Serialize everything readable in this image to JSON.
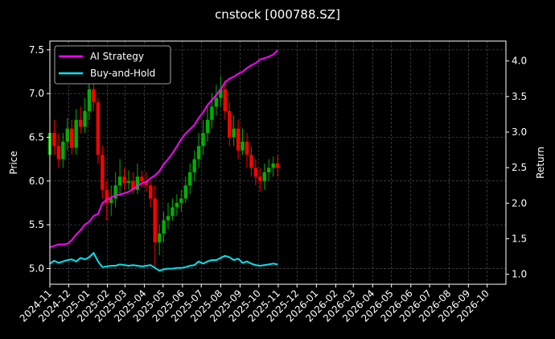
{
  "chart_data": {
    "type": "line",
    "title": "cnstock [000788.SZ]",
    "xlabel": "",
    "ylabel_left": "Price",
    "ylabel_right": "Return",
    "ylim_left": [
      4.82,
      7.6
    ],
    "ylim_right": [
      0.86,
      4.28
    ],
    "xlim": [
      "2024-11-01",
      "2026-10-31"
    ],
    "yticks_left": [
      5.0,
      5.5,
      6.0,
      6.5,
      7.0,
      7.5
    ],
    "yticks_right": [
      1.0,
      1.5,
      2.0,
      2.5,
      3.0,
      3.5,
      4.0
    ],
    "ytick_labels_left": [
      "5.0",
      "5.5",
      "6.0",
      "6.5",
      "7.0",
      "7.5"
    ],
    "ytick_labels_right": [
      "1.0",
      "1.5",
      "2.0",
      "2.5",
      "3.0",
      "3.5",
      "4.0"
    ],
    "xtick_labels": [
      "2024-11",
      "2024-12",
      "2025-01",
      "2025-02",
      "2025-03",
      "2025-04",
      "2025-05",
      "2025-06",
      "2025-07",
      "2025-08",
      "2025-09",
      "2025-10",
      "2025-11",
      "2025-12",
      "2026-01",
      "2026-02",
      "2026-03",
      "2026-04",
      "2026-05",
      "2026-06",
      "2026-07",
      "2026-08",
      "2026-09",
      "2026-10"
    ],
    "grid": true,
    "legend_position": "top-left",
    "series": [
      {
        "name": "AI Strategy",
        "axis": "right",
        "color": "#ff00ff",
        "x": [
          "2024-11-01",
          "2024-11-08",
          "2024-11-15",
          "2024-11-22",
          "2024-11-29",
          "2024-12-06",
          "2024-12-13",
          "2024-12-20",
          "2024-12-27",
          "2025-01-03",
          "2025-01-10",
          "2025-01-17",
          "2025-01-24",
          "2025-01-31",
          "2025-02-07",
          "2025-02-14",
          "2025-02-21",
          "2025-02-28",
          "2025-03-07",
          "2025-03-14",
          "2025-03-21",
          "2025-03-28",
          "2025-04-04",
          "2025-04-11",
          "2025-04-18",
          "2025-04-25",
          "2025-05-02",
          "2025-05-09",
          "2025-05-16",
          "2025-05-23",
          "2025-05-30",
          "2025-06-06",
          "2025-06-13",
          "2025-06-20",
          "2025-06-27",
          "2025-07-04",
          "2025-07-11",
          "2025-07-18",
          "2025-07-25",
          "2025-08-01",
          "2025-08-08",
          "2025-08-15",
          "2025-08-22",
          "2025-08-29",
          "2025-09-05",
          "2025-09-12",
          "2025-09-19",
          "2025-09-26",
          "2025-10-03",
          "2025-10-10",
          "2025-10-17",
          "2025-10-24",
          "2025-10-31"
        ],
        "values": [
          1.38,
          1.4,
          1.42,
          1.42,
          1.43,
          1.48,
          1.56,
          1.62,
          1.7,
          1.74,
          1.82,
          1.85,
          2.0,
          2.05,
          2.08,
          2.11,
          2.12,
          2.14,
          2.16,
          2.2,
          2.24,
          2.28,
          2.3,
          2.35,
          2.39,
          2.45,
          2.55,
          2.62,
          2.7,
          2.8,
          2.9,
          2.98,
          3.04,
          3.1,
          3.2,
          3.28,
          3.38,
          3.45,
          3.52,
          3.6,
          3.7,
          3.75,
          3.78,
          3.82,
          3.85,
          3.9,
          3.94,
          3.97,
          4.02,
          4.04,
          4.06,
          4.09,
          4.15
        ]
      },
      {
        "name": "Buy-and-Hold",
        "axis": "right",
        "color": "#00e5ee",
        "x": [
          "2024-11-01",
          "2024-11-08",
          "2024-11-15",
          "2024-11-22",
          "2024-11-29",
          "2024-12-06",
          "2024-12-13",
          "2024-12-20",
          "2024-12-27",
          "2025-01-03",
          "2025-01-10",
          "2025-01-17",
          "2025-01-24",
          "2025-01-31",
          "2025-02-07",
          "2025-02-14",
          "2025-02-21",
          "2025-02-28",
          "2025-03-07",
          "2025-03-14",
          "2025-03-21",
          "2025-03-28",
          "2025-04-04",
          "2025-04-11",
          "2025-04-18",
          "2025-04-25",
          "2025-05-02",
          "2025-05-09",
          "2025-05-16",
          "2025-05-23",
          "2025-05-30",
          "2025-06-06",
          "2025-06-13",
          "2025-06-20",
          "2025-06-27",
          "2025-07-04",
          "2025-07-11",
          "2025-07-18",
          "2025-07-25",
          "2025-08-01",
          "2025-08-08",
          "2025-08-15",
          "2025-08-22",
          "2025-08-29",
          "2025-09-05",
          "2025-09-12",
          "2025-09-19",
          "2025-09-26",
          "2025-10-03",
          "2025-10-10",
          "2025-10-17",
          "2025-10-24",
          "2025-10-31"
        ],
        "values": [
          1.15,
          1.19,
          1.16,
          1.18,
          1.2,
          1.21,
          1.18,
          1.23,
          1.21,
          1.24,
          1.3,
          1.18,
          1.1,
          1.11,
          1.12,
          1.12,
          1.14,
          1.13,
          1.12,
          1.13,
          1.12,
          1.11,
          1.12,
          1.13,
          1.09,
          1.05,
          1.07,
          1.08,
          1.08,
          1.09,
          1.09,
          1.1,
          1.12,
          1.13,
          1.18,
          1.15,
          1.18,
          1.2,
          1.2,
          1.23,
          1.26,
          1.24,
          1.2,
          1.22,
          1.16,
          1.18,
          1.15,
          1.13,
          1.12,
          1.13,
          1.14,
          1.15,
          1.14
        ]
      }
    ],
    "candles": {
      "axis": "left",
      "up_color": "#00b000",
      "down_color": "#ff0000",
      "x": [
        "2024-11-01",
        "2024-11-08",
        "2024-11-15",
        "2024-11-22",
        "2024-11-29",
        "2024-12-06",
        "2024-12-13",
        "2024-12-20",
        "2024-12-27",
        "2025-01-03",
        "2025-01-10",
        "2025-01-17",
        "2025-01-24",
        "2025-01-31",
        "2025-02-07",
        "2025-02-14",
        "2025-02-21",
        "2025-02-28",
        "2025-03-07",
        "2025-03-14",
        "2025-03-21",
        "2025-03-28",
        "2025-04-04",
        "2025-04-11",
        "2025-04-18",
        "2025-04-25",
        "2025-05-02",
        "2025-05-09",
        "2025-05-16",
        "2025-05-23",
        "2025-05-30",
        "2025-06-06",
        "2025-06-13",
        "2025-06-20",
        "2025-06-27",
        "2025-07-04",
        "2025-07-11",
        "2025-07-18",
        "2025-07-25",
        "2025-08-01",
        "2025-08-08",
        "2025-08-15",
        "2025-08-22",
        "2025-08-29",
        "2025-09-05",
        "2025-09-12",
        "2025-09-19",
        "2025-09-26",
        "2025-10-03",
        "2025-10-10",
        "2025-10-17",
        "2025-10-24",
        "2025-10-31"
      ],
      "open": [
        6.3,
        6.55,
        6.4,
        6.25,
        6.45,
        6.6,
        6.38,
        6.7,
        6.62,
        6.8,
        7.05,
        6.9,
        6.3,
        5.9,
        5.75,
        5.8,
        5.95,
        6.05,
        5.98,
        6.0,
        5.9,
        6.05,
        6.0,
        5.95,
        5.8,
        5.3,
        5.4,
        5.55,
        5.6,
        5.7,
        5.75,
        5.8,
        5.95,
        6.1,
        6.25,
        6.4,
        6.55,
        6.7,
        6.85,
        6.95,
        7.05,
        6.8,
        6.5,
        6.6,
        6.35,
        6.45,
        6.3,
        6.15,
        6.05,
        6.0,
        6.1,
        6.15,
        6.2
      ],
      "close": [
        6.55,
        6.4,
        6.25,
        6.45,
        6.6,
        6.38,
        6.7,
        6.62,
        6.8,
        7.05,
        6.9,
        6.3,
        5.9,
        5.75,
        5.8,
        5.95,
        6.05,
        5.98,
        6.0,
        5.9,
        6.05,
        6.0,
        5.95,
        5.8,
        5.3,
        5.4,
        5.55,
        5.6,
        5.7,
        5.75,
        5.8,
        5.95,
        6.1,
        6.25,
        6.4,
        6.55,
        6.7,
        6.85,
        6.95,
        7.05,
        6.8,
        6.5,
        6.6,
        6.35,
        6.45,
        6.3,
        6.15,
        6.05,
        6.0,
        6.1,
        6.15,
        6.2,
        6.15
      ],
      "high": [
        6.65,
        6.7,
        6.55,
        6.55,
        6.72,
        6.7,
        6.82,
        6.85,
        6.95,
        7.3,
        7.15,
        6.95,
        6.4,
        6.0,
        5.95,
        6.1,
        6.25,
        6.15,
        6.12,
        6.1,
        6.2,
        6.12,
        6.1,
        6.0,
        5.95,
        5.5,
        5.65,
        5.75,
        5.8,
        5.85,
        5.9,
        6.05,
        6.2,
        6.35,
        6.55,
        6.7,
        6.85,
        7.0,
        7.1,
        7.2,
        7.15,
        6.9,
        6.75,
        6.7,
        6.6,
        6.55,
        6.4,
        6.25,
        6.15,
        6.2,
        6.25,
        6.28,
        6.3
      ],
      "low": [
        6.05,
        6.3,
        6.15,
        6.15,
        6.35,
        6.3,
        6.3,
        6.55,
        6.55,
        6.7,
        6.8,
        6.2,
        5.8,
        5.55,
        5.6,
        5.7,
        5.85,
        5.9,
        5.9,
        5.85,
        5.85,
        5.92,
        5.88,
        5.7,
        5.0,
        5.15,
        5.3,
        5.45,
        5.55,
        5.6,
        5.65,
        5.75,
        5.85,
        6.0,
        6.15,
        6.3,
        6.45,
        6.6,
        6.75,
        6.85,
        6.7,
        6.4,
        6.4,
        6.25,
        6.3,
        6.15,
        6.05,
        5.95,
        5.88,
        5.9,
        6.0,
        6.05,
        6.05
      ]
    }
  }
}
